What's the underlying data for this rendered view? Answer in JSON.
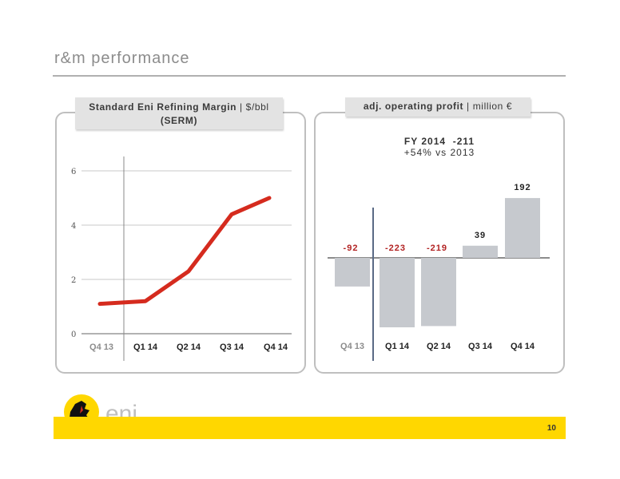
{
  "page": {
    "title": "r&m performance",
    "page_number": "10"
  },
  "panel_left": {
    "header_bold": "Standard Eni Refining Margin",
    "header_rest": " | $/bbl",
    "header_line2": "(SERM)"
  },
  "panel_right": {
    "header_bold": "adj. operating profit",
    "header_rest": " | million €",
    "fy_label": "FY 2014",
    "fy_value": "-211",
    "fy_change": "+54% vs 2013"
  },
  "logo": {
    "text": "eni"
  },
  "colors": {
    "line": "#d52b1e",
    "neg_label": "#b22222",
    "bar": "#c6c9ce",
    "footer": "#ffd700"
  },
  "chart_data": [
    {
      "type": "line",
      "title": "Standard Eni Refining Margin | $/bbl (SERM)",
      "categories": [
        "Q4 13",
        "Q1 14",
        "Q2 14",
        "Q3 14",
        "Q4 14"
      ],
      "values": [
        1.1,
        1.2,
        2.3,
        4.4,
        5.0
      ],
      "yticks": [
        0,
        2,
        4,
        6
      ],
      "ylim": [
        0,
        6
      ],
      "grid": true
    },
    {
      "type": "bar",
      "title": "adj. operating profit | million €",
      "categories": [
        "Q4 13",
        "Q1 14",
        "Q2 14",
        "Q3 14",
        "Q4 14"
      ],
      "values": [
        -92,
        -223,
        -219,
        39,
        192
      ],
      "labels": [
        "-92",
        "-223",
        "-219",
        "39",
        "192"
      ]
    }
  ]
}
